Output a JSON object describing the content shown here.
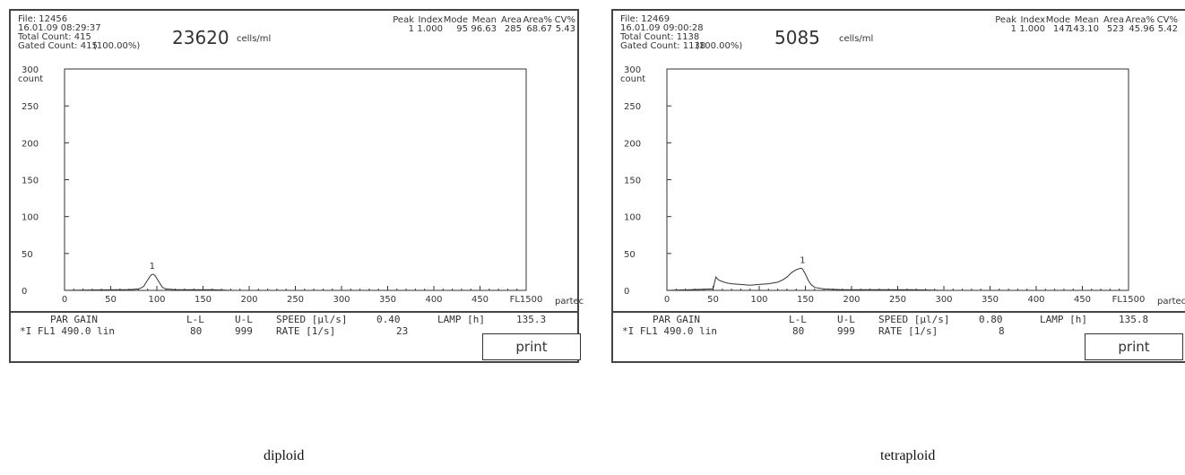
{
  "panels": [
    {
      "file": "File: 12456",
      "datetime": "16.01.09 08:29:37",
      "total_count": "Total Count: 415",
      "gated_count": "Gated Count: 415",
      "gated_pct": "(100.00%)",
      "concentration": "23620",
      "conc_unit": "cells/ml",
      "stats_headers": [
        "Peak",
        "Index",
        "Mode",
        "Mean",
        "Area",
        "Area%",
        "CV%"
      ],
      "stats_values": [
        "1",
        "1.000",
        "95",
        "96.63",
        "285",
        "68.67",
        "5.43"
      ],
      "ctl_row1": {
        "par_gain": "PAR GAIN",
        "ll": "L-L",
        "ul": "U-L",
        "speed": "SPEED [µl/s]",
        "speed_val": "0.40",
        "lamp": "LAMP [h]",
        "lamp_val": "135.3"
      },
      "ctl_row2": {
        "channel": "*I  FL1 490.0  lin",
        "ll": "80",
        "ul": "999",
        "rate": "RATE  [1/s]",
        "rate_val": "23"
      },
      "print_label": "print",
      "caption": "diploid",
      "brand": "partec"
    },
    {
      "file": "File: 12469",
      "datetime": "16.01.09 09:00:28",
      "total_count": "Total Count: 1138",
      "gated_count": "Gated Count: 1138",
      "gated_pct": "(100.00%)",
      "concentration": "5085",
      "conc_unit": "cells/ml",
      "stats_headers": [
        "Peak",
        "Index",
        "Mode",
        "Mean",
        "Area",
        "Area%",
        "CV%"
      ],
      "stats_values": [
        "1",
        "1.000",
        "147",
        "143.10",
        "523",
        "45.96",
        "5.42"
      ],
      "ctl_row1": {
        "par_gain": "PAR GAIN",
        "ll": "L-L",
        "ul": "U-L",
        "speed": "SPEED [µl/s]",
        "speed_val": "0.80",
        "lamp": "LAMP [h]",
        "lamp_val": "135.8"
      },
      "ctl_row2": {
        "channel": "*I  FL1 490.0  lin",
        "ll": "80",
        "ul": "999",
        "rate": "RATE  [1/s]",
        "rate_val": "8"
      },
      "print_label": "print",
      "caption": "tetraploid",
      "brand": "partec"
    }
  ],
  "chart_data": [
    {
      "type": "area",
      "ylabel": "count",
      "xlabel": "FL1",
      "ylim": [
        0,
        300
      ],
      "xlim": [
        0,
        500
      ],
      "yticks": [
        0,
        50,
        100,
        150,
        200,
        250,
        300
      ],
      "xticks": [
        0,
        50,
        100,
        150,
        200,
        250,
        300,
        350,
        400,
        450
      ],
      "xtick_end_label": "FL1500",
      "peak_label": "1",
      "peak_x": 95,
      "peak_y": 22,
      "x": [
        0,
        60,
        70,
        80,
        84,
        86,
        88,
        90,
        92,
        94,
        96,
        98,
        100,
        102,
        104,
        106,
        110,
        120,
        140,
        160,
        180,
        220,
        260,
        300,
        400,
        500
      ],
      "y": [
        0,
        1,
        1,
        2,
        4,
        6,
        10,
        14,
        18,
        21,
        22,
        20,
        16,
        12,
        8,
        4,
        2,
        1,
        1,
        1,
        0,
        0,
        0,
        0,
        0,
        0
      ]
    },
    {
      "type": "area",
      "ylabel": "count",
      "xlabel": "FL1",
      "ylim": [
        0,
        300
      ],
      "xlim": [
        0,
        500
      ],
      "yticks": [
        0,
        50,
        100,
        150,
        200,
        250,
        300
      ],
      "xticks": [
        0,
        50,
        100,
        150,
        200,
        250,
        300,
        350,
        400,
        450
      ],
      "xtick_end_label": "FL1500",
      "peak_label": "1",
      "peak_x": 147,
      "peak_y": 30,
      "x": [
        0,
        50,
        53,
        56,
        60,
        65,
        70,
        80,
        90,
        100,
        110,
        120,
        125,
        130,
        135,
        140,
        145,
        147,
        150,
        153,
        156,
        160,
        170,
        190,
        220,
        260,
        300,
        400,
        500
      ],
      "y": [
        0,
        2,
        18,
        14,
        12,
        10,
        9,
        8,
        7,
        8,
        9,
        11,
        14,
        18,
        24,
        28,
        30,
        29,
        22,
        14,
        8,
        4,
        2,
        1,
        1,
        1,
        0,
        0,
        0
      ]
    }
  ]
}
